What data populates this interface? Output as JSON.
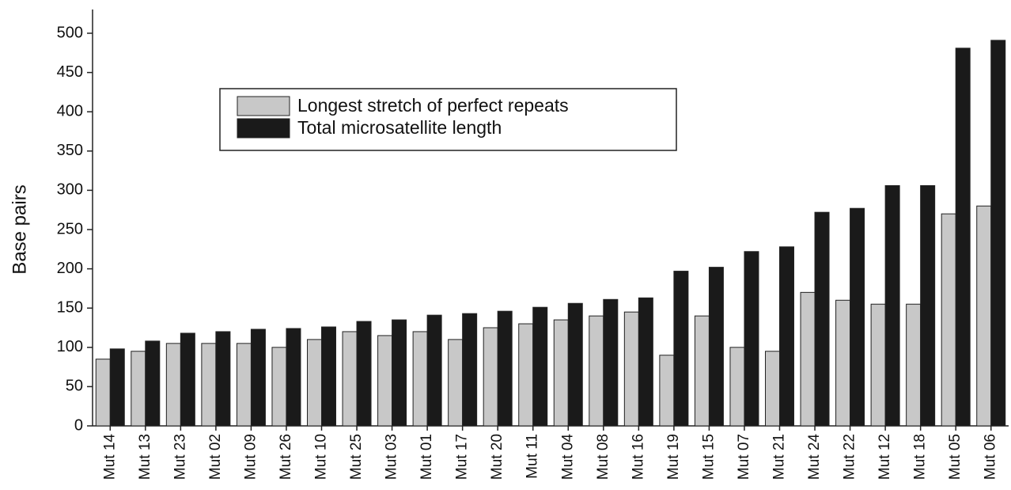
{
  "chart_data": {
    "type": "bar",
    "y_label": "Base pairs",
    "categories": [
      "Mut 14",
      "Mut 13",
      "Mut 23",
      "Mut 02",
      "Mut 09",
      "Mut 26",
      "Mut 10",
      "Mut 25",
      "Mut 03",
      "Mut 01",
      "Mut 17",
      "Mut 20",
      "Mut 11",
      "Mut 04",
      "Mut 08",
      "Mut 16",
      "Mut 19",
      "Mut 15",
      "Mut 07",
      "Mut 21",
      "Mut 24",
      "Mut 22",
      "Mut 12",
      "Mut 18",
      "Mut 05",
      "Mut 06"
    ],
    "series": [
      {
        "name": "Longest stretch of perfect repeats",
        "color": "#c8c8c8",
        "values": [
          85,
          95,
          105,
          105,
          105,
          100,
          110,
          120,
          115,
          120,
          110,
          125,
          130,
          135,
          140,
          145,
          90,
          140,
          100,
          95,
          170,
          160,
          155,
          155,
          270,
          280
        ]
      },
      {
        "name": "Total microsatellite length",
        "color": "#1a1a1a",
        "values": [
          98,
          108,
          118,
          120,
          123,
          124,
          126,
          133,
          135,
          141,
          143,
          146,
          151,
          156,
          161,
          163,
          197,
          202,
          222,
          228,
          272,
          277,
          306,
          306,
          481,
          491
        ]
      }
    ],
    "ylim": [
      0,
      500
    ],
    "yticks": [
      0,
      50,
      100,
      150,
      200,
      250,
      300,
      350,
      400,
      450,
      500
    ],
    "grid": false
  }
}
